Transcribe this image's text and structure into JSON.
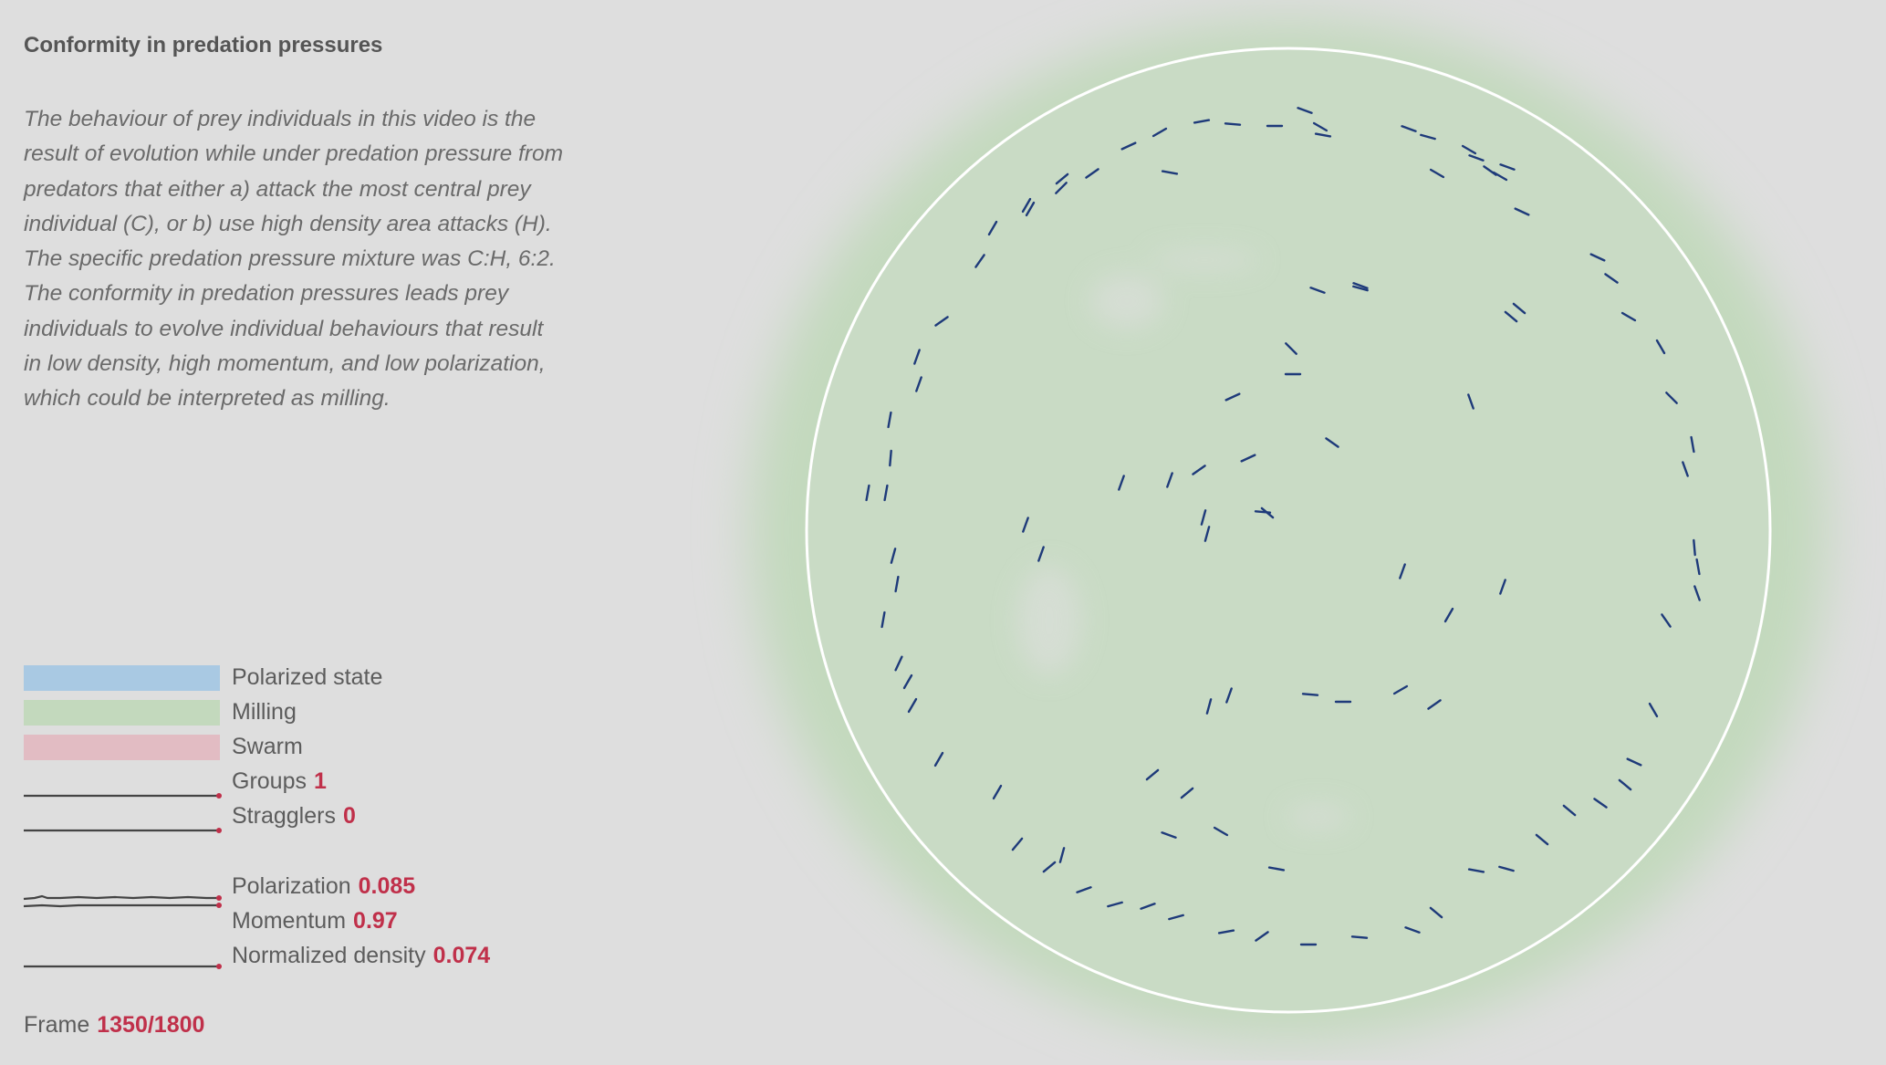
{
  "title": "Conformity in predation pressures",
  "description": [
    "The behaviour of prey individuals in this video is the",
    "result of evolution while under predation pressure from",
    "predators that either a) attack the most central prey",
    "individual (C), or b) use high density area attacks (H).",
    "The specific predation pressure mixture was C:H, 6:2.",
    "The conformity in predation pressures leads prey",
    "individuals to evolve individual behaviours that result",
    "in low density, high momentum, and low polarization,",
    "which could be interpreted as milling."
  ],
  "legend": {
    "states": [
      {
        "label": "Polarized state",
        "color": "#a9c9e3"
      },
      {
        "label": "Milling",
        "color": "#c3d9bd"
      },
      {
        "label": "Swarm",
        "color": "#e2bcc3"
      }
    ]
  },
  "metrics": {
    "groups": {
      "label": "Groups",
      "value": "1"
    },
    "stragglers": {
      "label": "Stragglers",
      "value": "0"
    },
    "polarization": {
      "label": "Polarization",
      "value": "0.085"
    },
    "momentum": {
      "label": "Momentum",
      "value": "0.97"
    },
    "density": {
      "label": "Normalized density",
      "value": "0.074"
    }
  },
  "frame": {
    "label": "Frame",
    "value": "1350/1800"
  },
  "colors": {
    "background": "#dedede",
    "milling_halo": "#c3d9bd",
    "arena_fill": "#c9dbc5",
    "arena_border": "#ffffff",
    "prey": "#1e3a7a",
    "accent_value": "#c0304a",
    "sparkline": "#444444"
  },
  "state": "Milling"
}
